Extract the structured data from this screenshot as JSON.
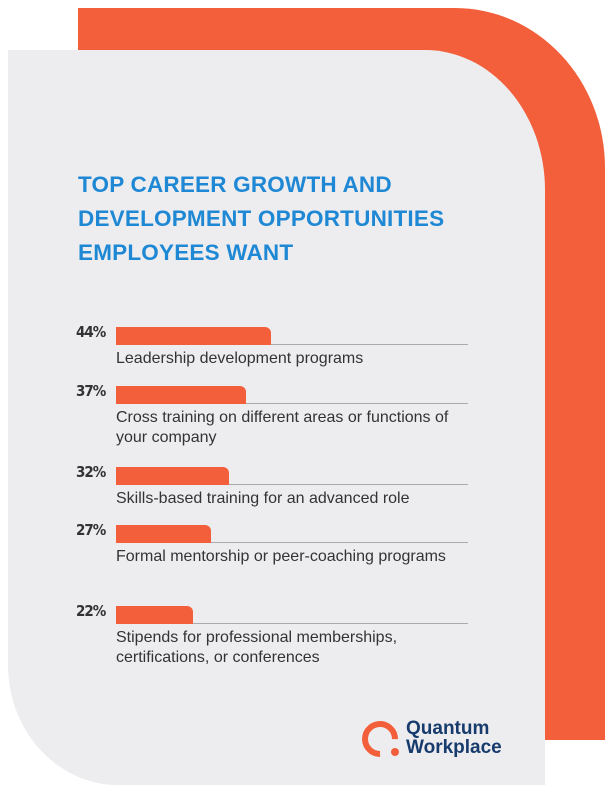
{
  "chart_data": {
    "type": "bar",
    "orientation": "horizontal",
    "title": "TOP CAREER GROWTH AND DEVELOPMENT OPPORTUNITIES EMPLOYEES WANT",
    "categories": [
      "Leadership development programs",
      "Cross training on different areas or functions of your company",
      "Skills-based training for an advanced role",
      "Formal mentorship or peer-coaching programs",
      "Stipends for professional memberships, certifications, or conferences"
    ],
    "values": [
      44,
      37,
      32,
      27,
      22
    ],
    "value_labels": [
      "44%",
      "37%",
      "32%",
      "27%",
      "22%"
    ],
    "xlim": [
      0,
      100
    ],
    "grid": false,
    "colors": {
      "bar": "#f25f3a",
      "title": "#1e88d4",
      "track": "#aaaaaa"
    }
  },
  "title_lines": [
    "TOP CAREER GROWTH AND",
    "DEVELOPMENT OPPORTUNITIES",
    "EMPLOYEES WANT"
  ],
  "logo": {
    "line1": "Quantum",
    "line2": "Workplace"
  }
}
